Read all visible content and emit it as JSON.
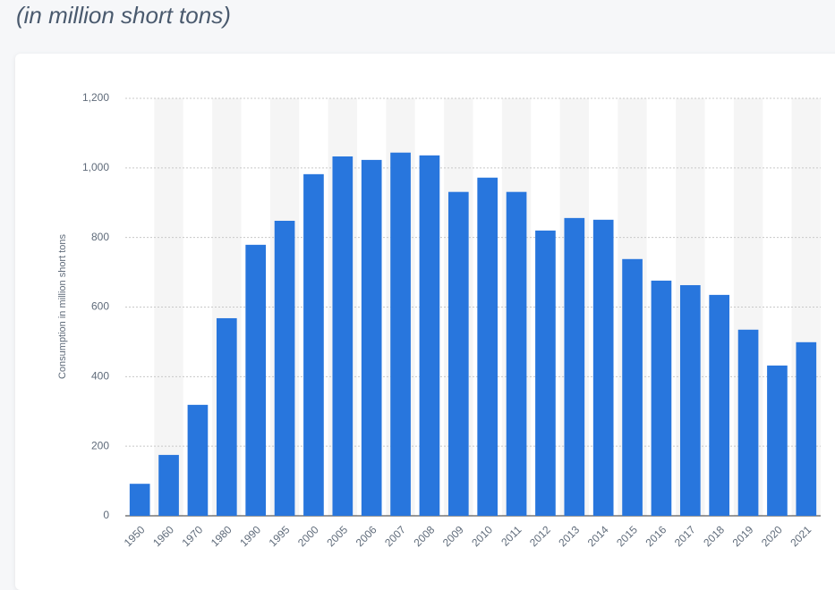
{
  "chart_data": {
    "type": "bar",
    "subtitle": "(in million short tons)",
    "y_label": "Consumption in million short tons",
    "categories": [
      "1950",
      "1960",
      "1970",
      "1980",
      "1990",
      "1995",
      "2000",
      "2005",
      "2006",
      "2007",
      "2008",
      "2009",
      "2010",
      "2011",
      "2012",
      "2013",
      "2014",
      "2015",
      "2016",
      "2017",
      "2018",
      "2019",
      "2020",
      "2021"
    ],
    "values": [
      92,
      175,
      319,
      568,
      779,
      848,
      982,
      1033,
      1023,
      1044,
      1036,
      931,
      972,
      931,
      820,
      856,
      851,
      738,
      676,
      663,
      635,
      535,
      432,
      499
    ],
    "color": "#2876dd",
    "ylim": [
      0,
      1200
    ],
    "yticks": [
      0,
      200,
      400,
      600,
      800,
      {
        "value": 1000,
        "label": "1,000"
      },
      {
        "value": 1200,
        "label": "1,200"
      }
    ],
    "grid": true
  }
}
